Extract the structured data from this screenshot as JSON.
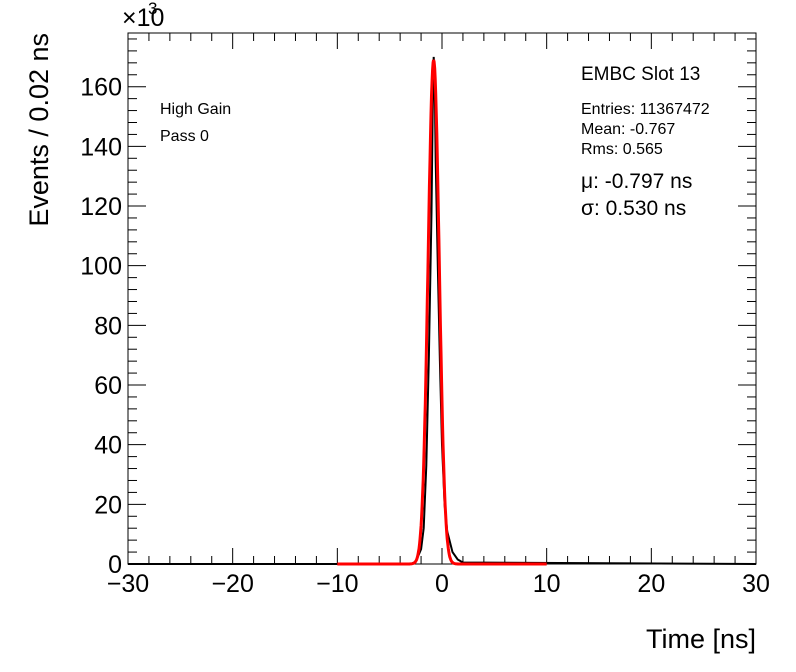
{
  "chart_data": {
    "type": "line",
    "title": "EMBC Slot 13",
    "xlabel": "Time [ns]",
    "ylabel": "Events / 0.02 ns",
    "y_multiplier": "×10",
    "y_multiplier_exp": "3",
    "xlim": [
      -30,
      30
    ],
    "ylim": [
      0,
      178
    ],
    "x_ticks": [
      -30,
      -20,
      -10,
      0,
      10,
      20,
      30
    ],
    "y_ticks": [
      0,
      20,
      40,
      60,
      80,
      100,
      120,
      140,
      160
    ],
    "grid": false,
    "legend": "none",
    "labels": [
      "High Gain",
      "Pass 0"
    ],
    "stats": [
      "Entries: 11367472",
      "Mean: -0.767",
      "Rms: 0.565"
    ],
    "fit_results": [
      "μ: -0.797 ns",
      "σ: 0.530 ns"
    ],
    "series": [
      {
        "kind": "histogram",
        "color": "#000000",
        "x": [
          -30,
          -3.0,
          -2.5,
          -2.0,
          -1.75,
          -1.5,
          -1.25,
          -1.0,
          -0.9,
          -0.797,
          -0.7,
          -0.6,
          -0.4,
          -0.2,
          0.0,
          0.25,
          0.5,
          1.0,
          1.5,
          2.0,
          30
        ],
        "y": [
          0,
          0,
          0.8,
          5,
          12,
          33,
          70,
          118,
          150,
          170,
          162,
          135,
          100,
          68,
          40,
          20,
          11,
          4,
          1.5,
          0.5,
          0
        ]
      },
      {
        "kind": "gaussian-fit",
        "color": "#ff0000",
        "amplitude": 169,
        "mean": -0.797,
        "sigma": 0.53,
        "range": [
          -10,
          10
        ]
      }
    ]
  }
}
